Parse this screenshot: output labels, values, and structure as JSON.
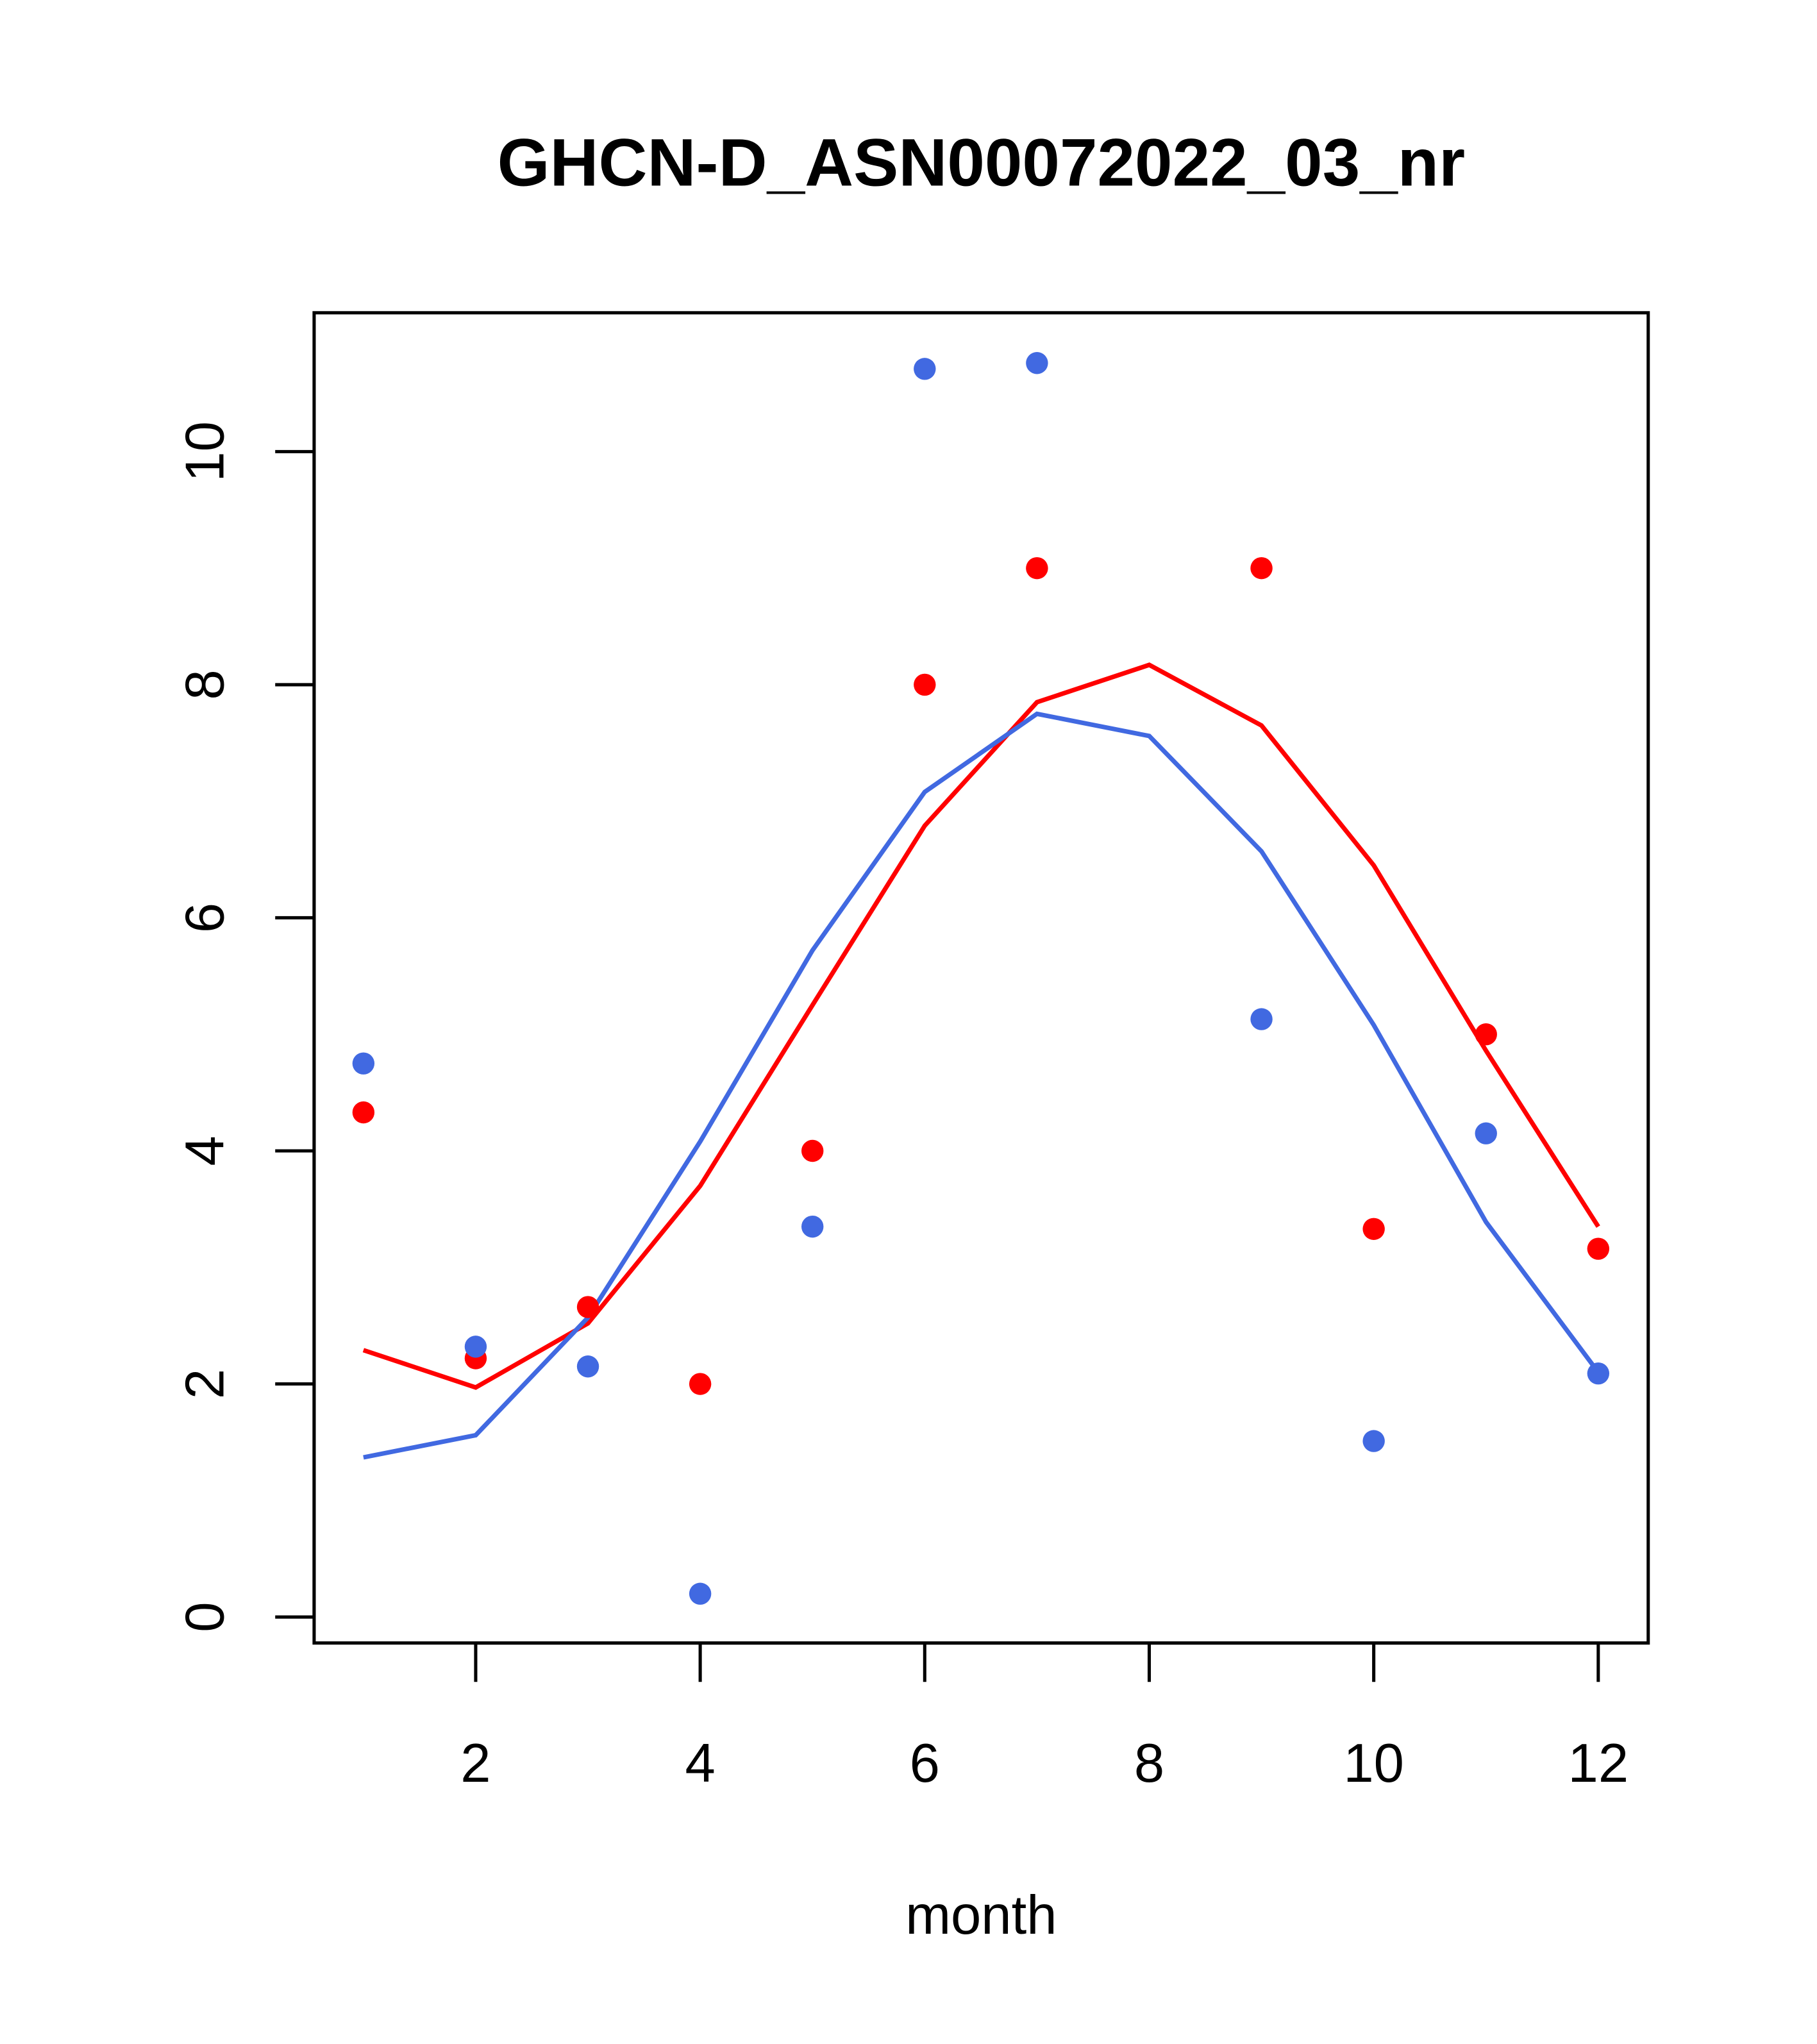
{
  "chart_data": {
    "type": "scatter+line",
    "title": "GHCN-D_ASN00072022_03_nr",
    "xlabel": "month",
    "ylabel": "",
    "xlim": [
      0.55,
      12.45
    ],
    "ylim": [
      -0.22,
      11.2
    ],
    "x_ticks": [
      2,
      4,
      6,
      8,
      10,
      12
    ],
    "y_ticks": [
      0,
      2,
      4,
      6,
      8,
      10
    ],
    "grid": false,
    "series": [
      {
        "name": "red points",
        "kind": "points",
        "color": "#FF0000",
        "x": [
          1,
          2,
          3,
          4,
          5,
          6,
          7,
          9,
          10,
          11,
          12
        ],
        "y": [
          4.33,
          2.22,
          2.66,
          2.0,
          4.0,
          8.0,
          9.0,
          9.0,
          3.33,
          5.0,
          3.16
        ]
      },
      {
        "name": "blue points",
        "kind": "points",
        "color": "#4169E1",
        "x": [
          1,
          2,
          3,
          4,
          5,
          6,
          7,
          9,
          10,
          11,
          12
        ],
        "y": [
          4.75,
          2.32,
          2.15,
          0.2,
          3.35,
          10.71,
          10.76,
          5.13,
          1.51,
          4.15,
          2.09
        ]
      },
      {
        "name": "red line",
        "kind": "line",
        "color": "#FF0000",
        "x": [
          1,
          2,
          3,
          4,
          5,
          6,
          7,
          8,
          9,
          10,
          11,
          12
        ],
        "y": [
          2.29,
          1.97,
          2.52,
          3.7,
          5.25,
          6.79,
          7.85,
          8.17,
          7.65,
          6.45,
          4.86,
          3.35
        ]
      },
      {
        "name": "blue line",
        "kind": "line",
        "color": "#4169E1",
        "x": [
          1,
          2,
          3,
          4,
          5,
          6,
          7,
          8,
          9,
          10,
          11,
          12
        ],
        "y": [
          1.37,
          1.56,
          2.57,
          4.08,
          5.72,
          7.08,
          7.75,
          7.56,
          6.57,
          5.08,
          3.39,
          2.1
        ]
      }
    ]
  }
}
